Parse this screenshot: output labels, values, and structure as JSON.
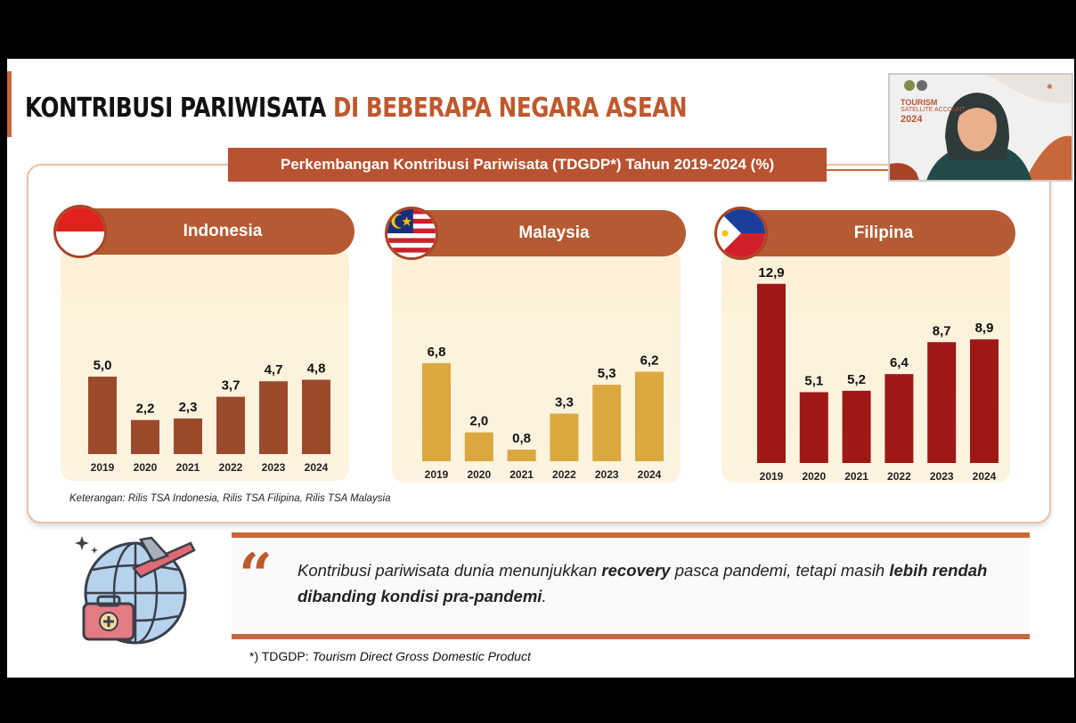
{
  "title": {
    "part1": "KONTRIBUSI PARIWISATA",
    "part2": "DI BEBERAPA NEGARA ASEAN"
  },
  "subtitle": "Perkembangan Kontribusi Pariwisata (TDGDP*) Tahun 2019-2024 (%)",
  "webcam": {
    "line1": "TOURISM",
    "line2": "SATELLITE ACCOUNT",
    "line3": "2024"
  },
  "colors": {
    "accent": "#c0582c",
    "indonesia": "#9b4b2c",
    "malaysia": "#dba83f",
    "filipina": "#9e1916"
  },
  "chart_data": [
    {
      "type": "bar",
      "title": "Indonesia",
      "categories": [
        "2019",
        "2020",
        "2021",
        "2022",
        "2023",
        "2024"
      ],
      "values": [
        5.0,
        2.2,
        2.3,
        3.7,
        4.7,
        4.8
      ],
      "labels": [
        "5,0",
        "2,2",
        "2,3",
        "3,7",
        "4,7",
        "4,8"
      ],
      "ylim": [
        0,
        13
      ]
    },
    {
      "type": "bar",
      "title": "Malaysia",
      "categories": [
        "2019",
        "2020",
        "2021",
        "2022",
        "2023",
        "2024"
      ],
      "values": [
        6.8,
        2.0,
        0.8,
        3.3,
        5.3,
        6.2
      ],
      "labels": [
        "6,8",
        "2,0",
        "0,8",
        "3,3",
        "5,3",
        "6,2"
      ],
      "ylim": [
        0,
        13
      ]
    },
    {
      "type": "bar",
      "title": "Filipina",
      "categories": [
        "2019",
        "2020",
        "2021",
        "2022",
        "2023",
        "2024"
      ],
      "values": [
        12.9,
        5.1,
        5.2,
        6.4,
        8.7,
        8.9
      ],
      "labels": [
        "12,9",
        "5,1",
        "5,2",
        "6,4",
        "8,7",
        "8,9"
      ],
      "ylim": [
        0,
        13
      ]
    }
  ],
  "note": "Keterangan: Rilis TSA Indonesia, Rilis TSA Filipina, Rilis TSA Malaysia",
  "quote": {
    "mark": "“",
    "part1": "Kontribusi pariwisata dunia menunjukkan ",
    "bold1": "recovery",
    "part2": " pasca pandemi, tetapi masih ",
    "bold2": "lebih rendah dibanding kondisi pra-pandemi",
    "part3": "."
  },
  "footnote": {
    "prefix": "*) TDGDP: ",
    "text": "Tourism Direct Gross Domestic Product"
  }
}
